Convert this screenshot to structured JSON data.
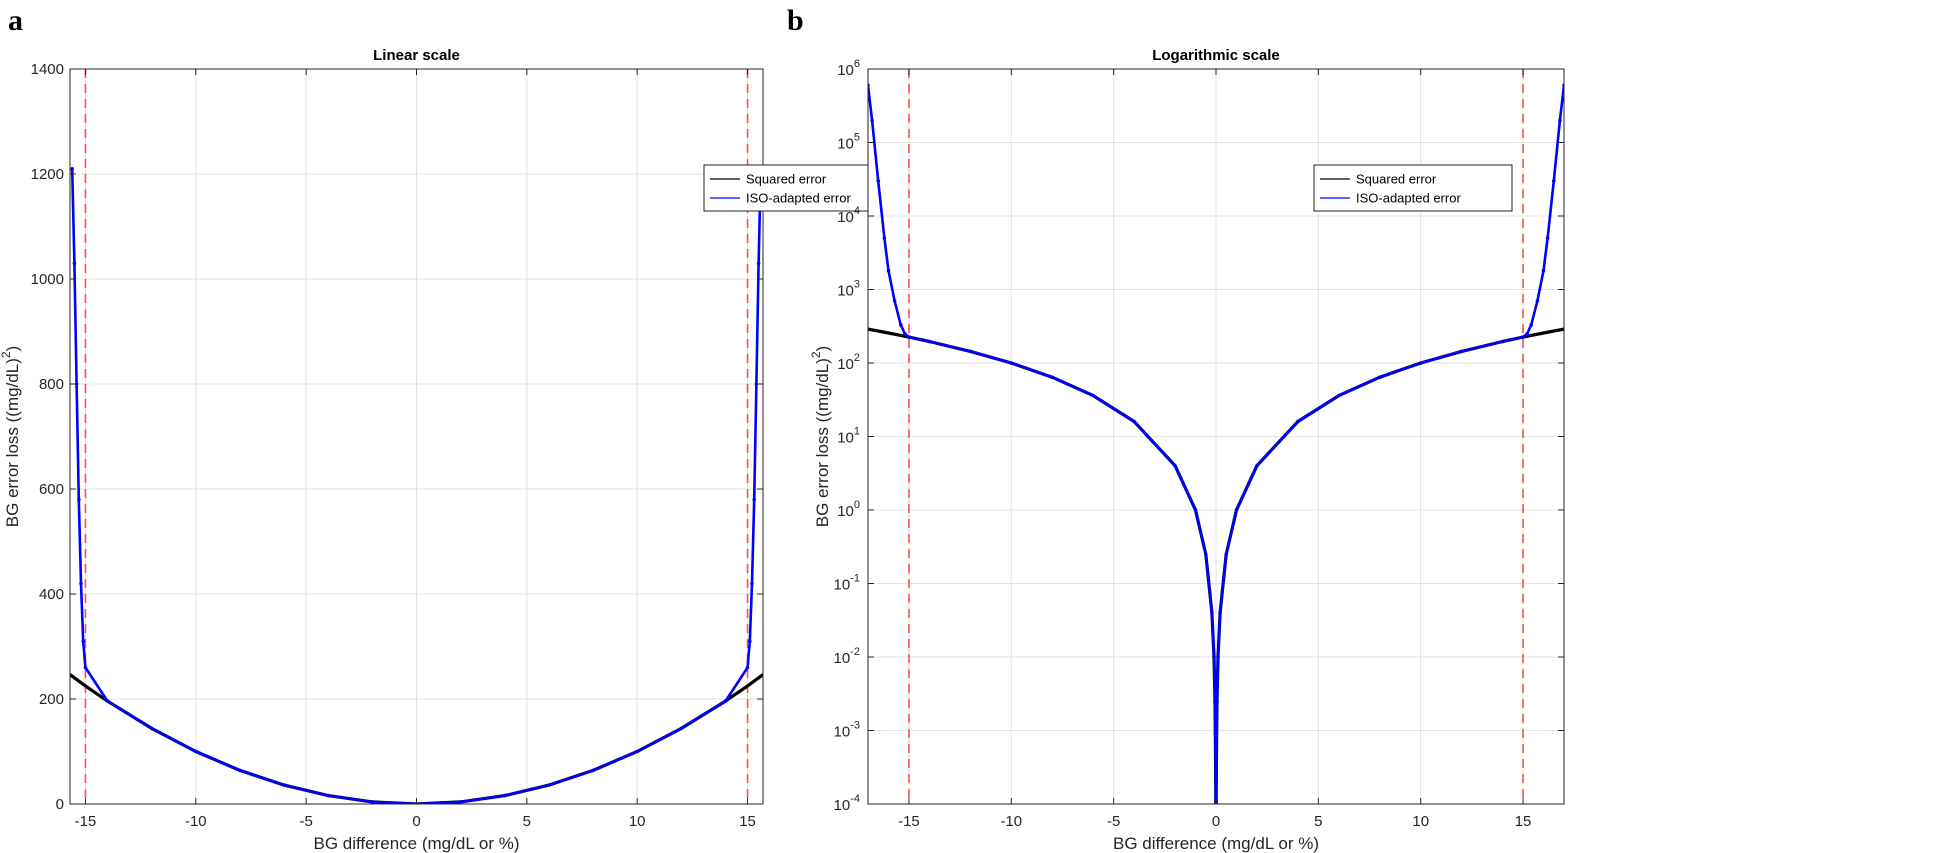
{
  "panels": {
    "a": {
      "letter": "a"
    },
    "b": {
      "letter": "b"
    }
  },
  "chart_data": [
    {
      "type": "line",
      "panel": "a",
      "title": "Linear scale",
      "xlabel": "BG difference (mg/dL or %)",
      "ylabel": "BG error loss ((mg/dL)",
      "ylabel_superscript": "2",
      "ylabel_suffix": ")",
      "xlim": [
        -15.7,
        15.7
      ],
      "ylim": [
        0,
        1400
      ],
      "yscale": "linear",
      "xticks": [
        -15,
        -10,
        -5,
        0,
        5,
        10,
        15
      ],
      "yticks": [
        0,
        200,
        400,
        600,
        800,
        1000,
        1200,
        1400
      ],
      "xtick_labels": [
        "-15",
        "-10",
        "-5",
        "0",
        "5",
        "10",
        "15"
      ],
      "ytick_labels": [
        "0",
        "200",
        "400",
        "600",
        "800",
        "1000",
        "1200",
        "1400"
      ],
      "grid": true,
      "legend": {
        "position": "top-right",
        "entries": [
          "Squared error",
          "ISO-adapted error"
        ]
      },
      "threshold_lines": {
        "x": [
          -15,
          15
        ],
        "color": "#ff4d4d",
        "style": "dashed"
      },
      "series": [
        {
          "name": "Squared error",
          "color": "#000000",
          "x": [
            -15.7,
            -15,
            -14,
            -12,
            -10,
            -8,
            -6,
            -4,
            -2,
            0,
            2,
            4,
            6,
            8,
            10,
            12,
            14,
            15,
            15.7
          ],
          "y": [
            246.5,
            225,
            196,
            144,
            100,
            64,
            36,
            16,
            4,
            0,
            4,
            16,
            36,
            64,
            100,
            144,
            196,
            225,
            246.5
          ]
        },
        {
          "name": "ISO-adapted error",
          "color": "#0000ff",
          "x": [
            -15.6,
            -15.5,
            -15.4,
            -15.3,
            -15.2,
            -15.1,
            -15,
            -14,
            -12,
            -10,
            -8,
            -6,
            -4,
            -2,
            0,
            2,
            4,
            6,
            8,
            10,
            12,
            14,
            15,
            15.1,
            15.2,
            15.3,
            15.4,
            15.5,
            15.6
          ],
          "y": [
            1210,
            1030,
            800,
            580,
            420,
            310,
            260,
            196,
            144,
            100,
            64,
            36,
            16,
            4,
            0,
            4,
            16,
            36,
            64,
            100,
            144,
            196,
            260,
            310,
            420,
            580,
            800,
            1030,
            1210
          ]
        }
      ]
    },
    {
      "type": "line",
      "panel": "b",
      "title": "Logarithmic scale",
      "xlabel": "BG difference (mg/dL or %)",
      "ylabel": "BG error loss ((mg/dL)",
      "ylabel_superscript": "2",
      "ylabel_suffix": ")",
      "xlim": [
        -17,
        17
      ],
      "ylim": [
        0.0001,
        1000000
      ],
      "yscale": "log",
      "xticks": [
        -15,
        -10,
        -5,
        0,
        5,
        10,
        15
      ],
      "yticks": [
        0.0001,
        0.001,
        0.01,
        0.1,
        1,
        10,
        100,
        1000,
        10000,
        100000,
        1000000
      ],
      "xtick_labels": [
        "-15",
        "-10",
        "-5",
        "0",
        "5",
        "10",
        "15"
      ],
      "ytick_labels": [
        {
          "base": "10",
          "exp": "-4"
        },
        {
          "base": "10",
          "exp": "-3"
        },
        {
          "base": "10",
          "exp": "-2"
        },
        {
          "base": "10",
          "exp": "-1"
        },
        {
          "base": "10",
          "exp": "0"
        },
        {
          "base": "10",
          "exp": "1"
        },
        {
          "base": "10",
          "exp": "2"
        },
        {
          "base": "10",
          "exp": "3"
        },
        {
          "base": "10",
          "exp": "4"
        },
        {
          "base": "10",
          "exp": "5"
        },
        {
          "base": "10",
          "exp": "6"
        }
      ],
      "grid": true,
      "legend": {
        "position": "top-right",
        "entries": [
          "Squared error",
          "ISO-adapted error"
        ]
      },
      "threshold_lines": {
        "x": [
          -15,
          15
        ],
        "color": "#ff4d4d",
        "style": "dashed"
      },
      "series": [
        {
          "name": "Squared error",
          "color": "#000000",
          "x": [
            -17,
            -16,
            -15,
            -14,
            -12,
            -10,
            -8,
            -6,
            -4,
            -2,
            -1,
            -0.5,
            -0.2,
            -0.1,
            -0.05,
            -0.02,
            -0.01,
            0.01,
            0.02,
            0.05,
            0.1,
            0.2,
            0.5,
            1,
            2,
            4,
            6,
            8,
            10,
            12,
            14,
            15,
            16,
            17
          ],
          "y": [
            289,
            256,
            225,
            196,
            144,
            100,
            64,
            36,
            16,
            4,
            1,
            0.25,
            0.04,
            0.01,
            0.0025,
            0.0004,
            0.0001,
            0.0001,
            0.0004,
            0.0025,
            0.01,
            0.04,
            0.25,
            1,
            4,
            16,
            36,
            64,
            100,
            144,
            196,
            225,
            256,
            289
          ]
        },
        {
          "name": "ISO-adapted error",
          "color": "#0000ff",
          "x": [
            -17,
            -16.8,
            -16.5,
            -16.2,
            -16,
            -15.7,
            -15.4,
            -15.2,
            -15,
            -14,
            -12,
            -10,
            -8,
            -6,
            -4,
            -2,
            -1,
            -0.5,
            -0.2,
            -0.1,
            -0.05,
            -0.02,
            -0.01,
            0.01,
            0.02,
            0.05,
            0.1,
            0.2,
            0.5,
            1,
            2,
            4,
            6,
            8,
            10,
            12,
            14,
            15,
            15.2,
            15.4,
            15.7,
            16,
            16.2,
            16.5,
            16.8,
            17
          ],
          "y": [
            600000,
            200000,
            30000,
            5000,
            1800,
            700,
            330,
            250,
            225,
            196,
            144,
            100,
            64,
            36,
            16,
            4,
            1,
            0.25,
            0.04,
            0.01,
            0.0025,
            0.0004,
            0.0001,
            0.0001,
            0.0004,
            0.0025,
            0.01,
            0.04,
            0.25,
            1,
            4,
            16,
            36,
            64,
            100,
            144,
            196,
            225,
            250,
            330,
            700,
            1800,
            5000,
            30000,
            200000,
            600000
          ]
        }
      ]
    }
  ]
}
